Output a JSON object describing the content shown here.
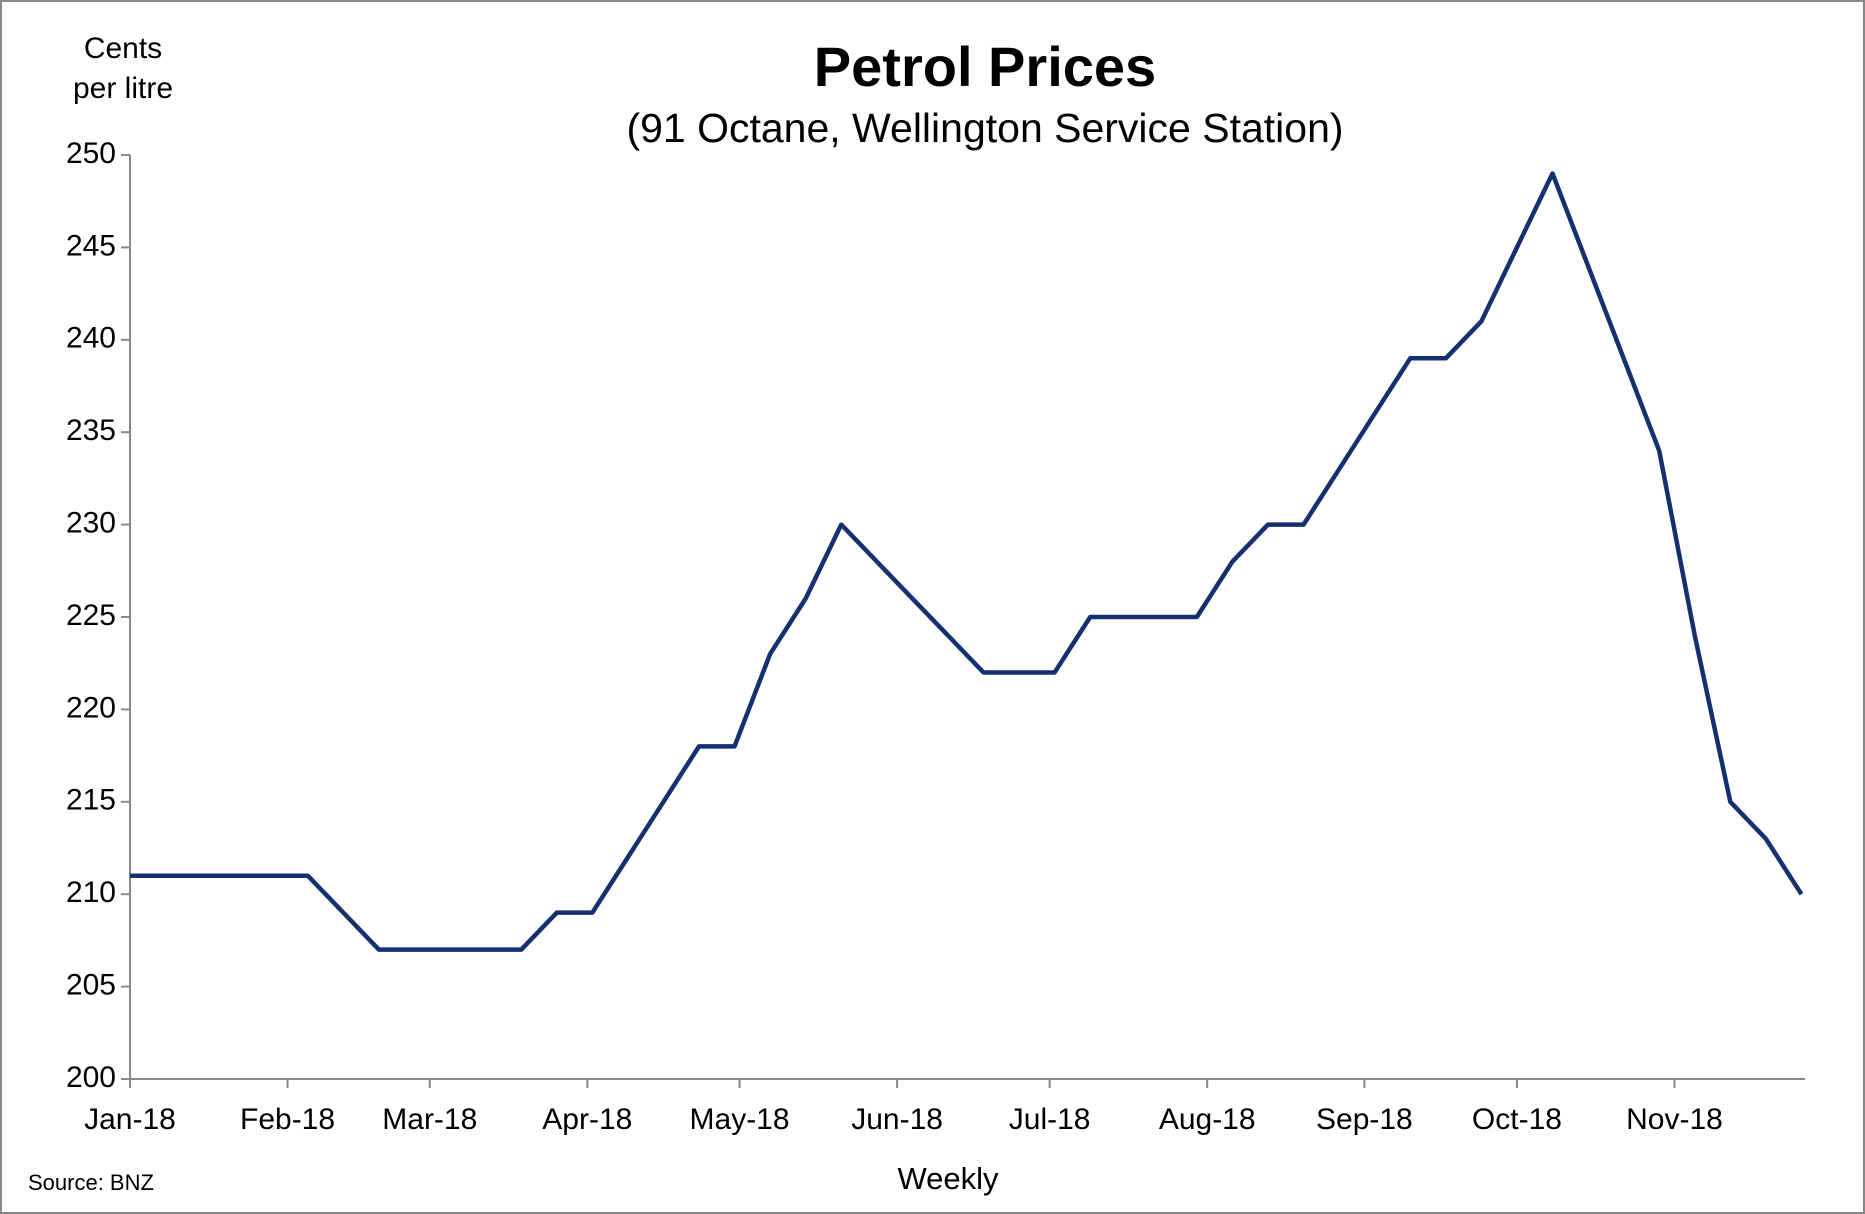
{
  "chart_data": {
    "type": "line",
    "title": "Petrol Prices",
    "subtitle": "(91 Octane, Wellington Service Station)",
    "y_label": [
      "Cents",
      "per litre"
    ],
    "x_label": "Weekly",
    "source": "Source: BNZ",
    "x": [
      0,
      1,
      2,
      3,
      4,
      5,
      6,
      7,
      8,
      9,
      10,
      11,
      12,
      13,
      14,
      15,
      16,
      17,
      18,
      19,
      20,
      21,
      22,
      23,
      24,
      25,
      26,
      27,
      28,
      29,
      30,
      31,
      32,
      33,
      34,
      35,
      36,
      37,
      38,
      39,
      40,
      41,
      42,
      43,
      44,
      45,
      46,
      47
    ],
    "series": [
      {
        "name": "Petrol price",
        "color": "#14306e",
        "values": [
          211,
          211,
          211,
          211,
          211,
          211,
          209,
          207,
          207,
          207,
          207,
          207,
          209,
          209,
          212,
          215,
          218,
          218,
          223,
          226,
          230,
          228,
          226,
          224,
          222,
          222,
          222,
          225,
          225,
          225,
          225,
          228,
          230,
          230,
          233,
          236,
          239,
          239,
          241,
          245,
          249,
          244,
          239,
          234,
          224,
          215,
          213,
          210
        ]
      }
    ],
    "xlim": [
      0,
      47.1
    ],
    "xticks": [
      {
        "value": 0,
        "label": "Jan-18"
      },
      {
        "value": 4.43,
        "label": "Feb-18"
      },
      {
        "value": 8.43,
        "label": "Mar-18"
      },
      {
        "value": 12.86,
        "label": "Apr-18"
      },
      {
        "value": 17.14,
        "label": "May-18"
      },
      {
        "value": 21.57,
        "label": "Jun-18"
      },
      {
        "value": 25.86,
        "label": "Jul-18"
      },
      {
        "value": 30.29,
        "label": "Aug-18"
      },
      {
        "value": 34.71,
        "label": "Sep-18"
      },
      {
        "value": 39,
        "label": "Oct-18"
      },
      {
        "value": 43.43,
        "label": "Nov-18"
      }
    ],
    "ylim": [
      200,
      250
    ],
    "yticks": [
      200,
      205,
      210,
      215,
      220,
      225,
      230,
      235,
      240,
      245,
      250
    ],
    "grid": false
  }
}
